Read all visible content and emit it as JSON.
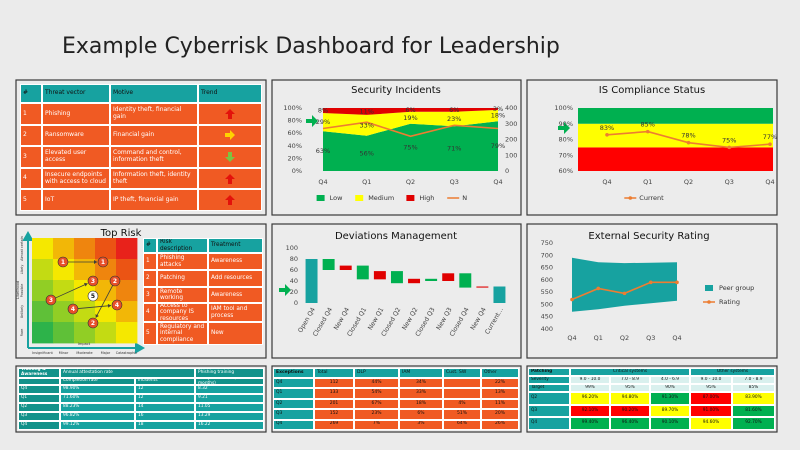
{
  "title": "Example Cyberrisk Dashboard for Leadership",
  "threats": {
    "rows": [
      [
        "#",
        "Threat vector",
        "Motive",
        "Trend"
      ],
      [
        "1",
        "Phishing",
        "Identity theft, financial gain"
      ],
      [
        "2",
        "Ransomware",
        "Financial gain"
      ],
      [
        "3",
        "Elevated user access",
        "Command and control, information theft"
      ],
      [
        "4",
        "Insecure endpoints with access to cloud",
        "Information theft, identity theft"
      ],
      [
        "5",
        "IoT",
        "IP theft, financial gain"
      ]
    ],
    "trend": [
      "up",
      "right",
      "down",
      "up",
      "up"
    ],
    "trend_colors": {
      "up": "#e3120b",
      "right": "#ffd200",
      "down": "#7dc242"
    }
  },
  "top_risk": {
    "title": "Top Risk",
    "x_axis": "Impact",
    "y_axis": "Likelihood",
    "x_levels": [
      "Insignificant",
      "Minor",
      "Moderate",
      "Major",
      "Catastrophic"
    ],
    "y_levels": [
      "Almost certain",
      "Likely",
      "Possible",
      "Unlikely",
      "Rare"
    ],
    "markers": [
      "1",
      "1",
      "3",
      "2",
      "5",
      "3",
      "4",
      "4",
      "2"
    ],
    "table": {
      "rows": [
        [
          "#",
          "Risk description",
          "Treatment"
        ],
        [
          "1",
          "Phishing attacks",
          "Awareness"
        ],
        [
          "2",
          "Patching",
          "Add resources"
        ],
        [
          "3",
          "Remote working",
          "Awareness"
        ],
        [
          "4",
          "Access to company IS resources",
          "IAM tool and process"
        ],
        [
          "5",
          "Regulatory and internal compliance",
          "New"
        ]
      ]
    }
  },
  "chart_data": [
    {
      "type": "area",
      "title": "Security Incidents",
      "categories": [
        "Q4",
        "Q1",
        "Q2",
        "Q3",
        "Q4"
      ],
      "series": [
        {
          "name": "Low",
          "color": "#00b050",
          "values": [
            63,
            56,
            75,
            71,
            79
          ],
          "value_labels": [
            "63%",
            "56%",
            "75%",
            "71%",
            "79%"
          ]
        },
        {
          "name": "Medium",
          "color": "#ffff00",
          "values": [
            29,
            33,
            19,
            23,
            18
          ],
          "value_labels": [
            "29%",
            "33%",
            "19%",
            "23%",
            "18%"
          ]
        },
        {
          "name": "High",
          "color": "#e00000",
          "values": [
            8,
            11,
            6,
            6,
            3
          ],
          "value_labels": [
            "8%",
            "11%",
            "6%",
            "6%",
            "3%"
          ]
        },
        {
          "name": "N",
          "color": "#ed7d31",
          "axis": "y2",
          "values": [
            270,
            310,
            220,
            290,
            270
          ]
        }
      ],
      "ylim": [
        0,
        100
      ],
      "yticks": [
        {
          "value": 0,
          "label": "0%"
        },
        {
          "value": 20,
          "label": "20%"
        },
        {
          "value": 40,
          "label": "40%"
        },
        {
          "value": 60,
          "label": "60%"
        },
        {
          "value": 80,
          "label": "80%"
        },
        {
          "value": 100,
          "label": "100%"
        }
      ],
      "y2lim": [
        0,
        400
      ],
      "y2ticks": [
        0,
        100,
        200,
        300,
        400
      ],
      "legend": "bottom"
    },
    {
      "type": "line",
      "title": "IS Compliance Status",
      "categories": [
        "Q4",
        "Q1",
        "Q2",
        "Q3",
        "Q4"
      ],
      "bands": [
        {
          "color": "#ff0000",
          "from": 60,
          "to": 75
        },
        {
          "color": "#ffff00",
          "from": 75,
          "to": 90
        },
        {
          "color": "#00b050",
          "from": 90,
          "to": 100
        }
      ],
      "series": [
        {
          "name": "Current",
          "color": "#ed7d31",
          "values": [
            83,
            85,
            78,
            75,
            77
          ],
          "value_labels": [
            "83%",
            "85%",
            "78%",
            "75%",
            "77%"
          ]
        }
      ],
      "ylim": [
        60,
        100
      ],
      "yticks": [
        {
          "value": 60,
          "label": "60%"
        },
        {
          "value": 70,
          "label": "70%"
        },
        {
          "value": 80,
          "label": "80%"
        },
        {
          "value": 90,
          "label": "90%"
        },
        {
          "value": 100,
          "label": "100%"
        }
      ],
      "legend": "bottom"
    },
    {
      "type": "waterfall",
      "title": "Deviations Management",
      "categories": [
        "Open Q4",
        "Closed Q4",
        "New Q4",
        "Closed Q1",
        "New Q1",
        "Closed Q2",
        "New Q2",
        "Closed Q3",
        "New Q3",
        "Closed Q4",
        "New Q4",
        "Current..."
      ],
      "values": [
        80,
        -20,
        8,
        -25,
        15,
        -22,
        8,
        -4,
        14,
        -26,
        2,
        30
      ],
      "colors": {
        "total": "#17a2a0",
        "increase": "#e00000",
        "decrease": "#00b050"
      },
      "ylim": [
        0,
        100
      ],
      "yticks": [
        0,
        20,
        40,
        60,
        80,
        100
      ]
    },
    {
      "type": "line",
      "title": "External Security Rating",
      "categories": [
        "Q4",
        "Q1",
        "Q2",
        "Q3",
        "Q4"
      ],
      "series": [
        {
          "name": "Peer group",
          "color": "#17a2a0",
          "low": [
            470,
            480,
            495,
            505,
            515
          ],
          "high": [
            690,
            672,
            668,
            670,
            672
          ]
        },
        {
          "name": "Rating",
          "color": "#ed7d31",
          "values": [
            520,
            565,
            545,
            590,
            590
          ]
        }
      ],
      "ylim": [
        400,
        750
      ],
      "yticks": [
        400,
        450,
        500,
        550,
        600,
        650,
        700,
        750
      ],
      "legend": "right"
    }
  ],
  "training": {
    "rows": [
      [
        "Training & Awareness",
        "Annual attestation rate",
        null,
        "Phishing training"
      ],
      [
        null,
        "Completion rate",
        "Incidents",
        "Completion rate (last 12 months)"
      ],
      [
        "Q4",
        "98.90%",
        "12",
        "8.32"
      ],
      [
        "Q1",
        "71.60%",
        "12",
        "9.21"
      ],
      [
        "Q2",
        "88.23%",
        "14",
        "11.05"
      ],
      [
        "Q3",
        "96.82%",
        "16",
        "13.29"
      ],
      [
        "Q4",
        "99.12%",
        "18",
        "16.22"
      ]
    ]
  },
  "exceptions": {
    "rows": [
      [
        "Exceptions",
        "Total",
        "DLP",
        "IAM",
        "Cust. SW",
        "Other"
      ],
      [
        "Q4",
        "112",
        "44%",
        "34%",
        null,
        "22%"
      ],
      [
        "Q1",
        "133",
        "54%",
        "33%",
        null,
        "13%"
      ],
      [
        "Q2",
        "201",
        "67%",
        "18%",
        "4%",
        "11%"
      ],
      [
        "Q3",
        "152",
        "23%",
        "6%",
        "51%",
        "20%"
      ],
      [
        "Q4",
        "269",
        "7%",
        "3%",
        "64%",
        "26%"
      ]
    ]
  },
  "patching": {
    "rows": [
      [
        "Patching",
        "Critical systems",
        null,
        null,
        "Other systems",
        null
      ],
      [
        "Severity",
        "9.0 - 10.0",
        "7.0 - 8.9",
        "4.0 - 6.9",
        "9.0 - 10.0",
        "7.0 - 8.9"
      ],
      [
        "Target",
        "99%",
        "95%",
        "90%",
        "95%",
        "85%"
      ],
      [
        "Q2",
        "96.20%",
        "94.80%",
        "91.30%",
        "87.00%",
        "83.90%"
      ],
      [
        "Q3",
        "92.10%",
        "90.20%",
        "89.70%",
        "91.00%",
        "81.60%"
      ],
      [
        "Q4",
        "99.40%",
        "96.40%",
        "90.10%",
        "94.60%",
        "92.70%"
      ]
    ],
    "cell_colors": [
      [
        "#17a2a0",
        "#17a2a0",
        "#17a2a0",
        "#17a2a0",
        "#17a2a0",
        "#17a2a0"
      ],
      [
        "#17a2a0",
        "#d9f0ee",
        "#d9f0ee",
        "#d9f0ee",
        "#d9f0ee",
        "#d9f0ee"
      ],
      [
        "#17a2a0",
        "#d9f0ee",
        "#d9f0ee",
        "#d9f0ee",
        "#d9f0ee",
        "#d9f0ee"
      ],
      [
        "#17a2a0",
        "#ffff00",
        "#ffff00",
        "#00b050",
        "#ff0000",
        "#ffff00"
      ],
      [
        "#17a2a0",
        "#ff0000",
        "#ff0000",
        "#ffff00",
        "#ff0000",
        "#00b050"
      ],
      [
        "#17a2a0",
        "#00b050",
        "#00b050",
        "#00b050",
        "#ffff00",
        "#00b050"
      ]
    ]
  }
}
